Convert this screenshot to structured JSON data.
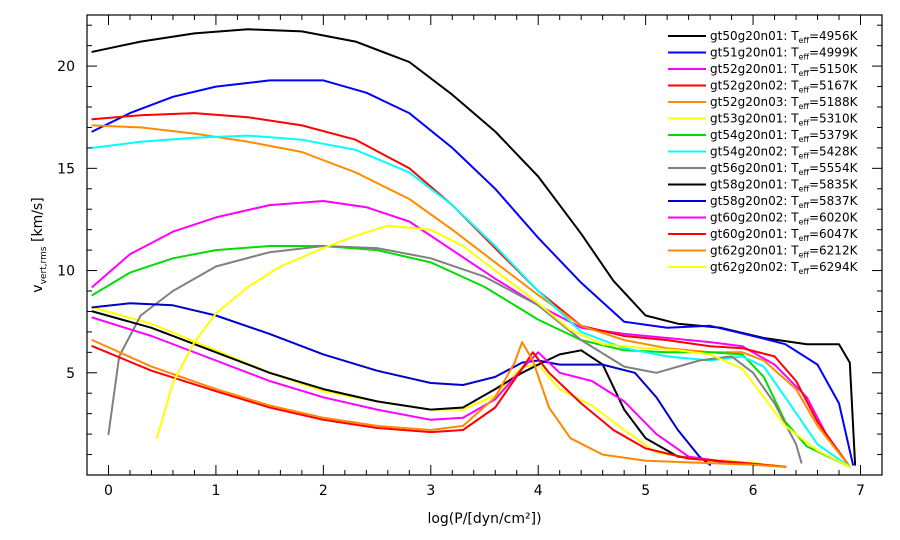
{
  "chart_data": {
    "type": "line",
    "xlabel": "log(P/[dyn/cm²])",
    "ylabel": "v_vert,rms [km/s]",
    "xlim": [
      -0.2,
      7.2
    ],
    "ylim": [
      0,
      22.5
    ],
    "x_ticks": [
      0,
      1,
      2,
      3,
      4,
      5,
      6,
      7
    ],
    "y_ticks": [
      5,
      10,
      15,
      20
    ],
    "grid": false,
    "legend_position": "top-right",
    "series": [
      {
        "name": "gt50g20n01: Teff=4956K",
        "model": "gt50g20n01",
        "teff": "4956K",
        "color": "#000000",
        "points": [
          [
            -0.15,
            20.7
          ],
          [
            0.3,
            21.2
          ],
          [
            0.8,
            21.6
          ],
          [
            1.3,
            21.8
          ],
          [
            1.8,
            21.7
          ],
          [
            2.3,
            21.2
          ],
          [
            2.8,
            20.2
          ],
          [
            3.2,
            18.6
          ],
          [
            3.6,
            16.8
          ],
          [
            4.0,
            14.6
          ],
          [
            4.4,
            11.8
          ],
          [
            4.7,
            9.5
          ],
          [
            5.0,
            7.8
          ],
          [
            5.3,
            7.4
          ],
          [
            5.7,
            7.2
          ],
          [
            6.1,
            6.7
          ],
          [
            6.5,
            6.4
          ],
          [
            6.8,
            6.4
          ],
          [
            6.9,
            5.5
          ],
          [
            6.95,
            0.5
          ]
        ]
      },
      {
        "name": "gt51g20n01: Teff=4999K",
        "model": "gt51g20n01",
        "teff": "4999K",
        "color": "#0000FF",
        "points": [
          [
            -0.15,
            16.8
          ],
          [
            0.2,
            17.7
          ],
          [
            0.6,
            18.5
          ],
          [
            1.0,
            19.0
          ],
          [
            1.5,
            19.3
          ],
          [
            2.0,
            19.3
          ],
          [
            2.4,
            18.7
          ],
          [
            2.8,
            17.7
          ],
          [
            3.2,
            16.0
          ],
          [
            3.6,
            14.0
          ],
          [
            4.0,
            11.6
          ],
          [
            4.4,
            9.4
          ],
          [
            4.8,
            7.5
          ],
          [
            5.2,
            7.2
          ],
          [
            5.6,
            7.3
          ],
          [
            6.0,
            6.8
          ],
          [
            6.3,
            6.4
          ],
          [
            6.6,
            5.4
          ],
          [
            6.8,
            3.5
          ],
          [
            6.93,
            0.5
          ]
        ]
      },
      {
        "name": "gt52g20n01: Teff=5150K",
        "model": "gt52g20n01",
        "teff": "5150K",
        "color": "#FF00FF",
        "points": [
          [
            -0.15,
            9.2
          ],
          [
            0.2,
            10.8
          ],
          [
            0.6,
            11.9
          ],
          [
            1.0,
            12.6
          ],
          [
            1.5,
            13.2
          ],
          [
            2.0,
            13.4
          ],
          [
            2.4,
            13.1
          ],
          [
            2.8,
            12.4
          ],
          [
            3.2,
            11.0
          ],
          [
            3.6,
            9.6
          ],
          [
            4.0,
            8.3
          ],
          [
            4.4,
            7.2
          ],
          [
            4.8,
            6.9
          ],
          [
            5.2,
            6.7
          ],
          [
            5.6,
            6.5
          ],
          [
            5.9,
            6.3
          ],
          [
            6.2,
            5.4
          ],
          [
            6.5,
            3.8
          ],
          [
            6.7,
            1.8
          ],
          [
            6.9,
            0.4
          ]
        ]
      },
      {
        "name": "gt52g20n02: Teff=5167K",
        "model": "gt52g20n02",
        "teff": "5167K",
        "color": "#FF0000",
        "points": [
          [
            -0.15,
            17.4
          ],
          [
            0.3,
            17.6
          ],
          [
            0.8,
            17.7
          ],
          [
            1.3,
            17.5
          ],
          [
            1.8,
            17.1
          ],
          [
            2.3,
            16.4
          ],
          [
            2.8,
            15.0
          ],
          [
            3.2,
            13.2
          ],
          [
            3.6,
            11.1
          ],
          [
            4.0,
            9.0
          ],
          [
            4.4,
            7.3
          ],
          [
            4.8,
            6.8
          ],
          [
            5.2,
            6.6
          ],
          [
            5.6,
            6.3
          ],
          [
            5.9,
            6.2
          ],
          [
            6.2,
            5.8
          ],
          [
            6.4,
            4.6
          ],
          [
            6.6,
            2.6
          ],
          [
            6.9,
            0.4
          ]
        ]
      },
      {
        "name": "gt52g20n03: Teff=5188K",
        "model": "gt52g20n03",
        "teff": "5188K",
        "color": "#FF8C00",
        "points": [
          [
            -0.15,
            17.1
          ],
          [
            0.3,
            17.0
          ],
          [
            0.8,
            16.7
          ],
          [
            1.3,
            16.3
          ],
          [
            1.8,
            15.8
          ],
          [
            2.3,
            14.8
          ],
          [
            2.8,
            13.5
          ],
          [
            3.2,
            12.0
          ],
          [
            3.6,
            10.4
          ],
          [
            4.0,
            8.8
          ],
          [
            4.4,
            7.3
          ],
          [
            4.8,
            6.6
          ],
          [
            5.2,
            6.2
          ],
          [
            5.6,
            6.0
          ],
          [
            5.9,
            6.0
          ],
          [
            6.1,
            5.6
          ],
          [
            6.4,
            4.2
          ],
          [
            6.6,
            2.4
          ],
          [
            6.9,
            0.4
          ]
        ]
      },
      {
        "name": "gt53g20n01: Teff=5310K",
        "model": "gt53g20n01",
        "teff": "5310K",
        "color": "#FFFF00",
        "points": [
          [
            -0.15,
            8.2
          ],
          [
            0.4,
            7.4
          ],
          [
            1.0,
            6.1
          ],
          [
            1.5,
            5.0
          ],
          [
            2.0,
            4.1
          ],
          [
            2.5,
            3.6
          ],
          [
            3.0,
            3.2
          ],
          [
            3.3,
            3.2
          ],
          [
            3.6,
            3.9
          ],
          [
            3.85,
            5.3
          ],
          [
            4.0,
            5.4
          ],
          [
            4.2,
            4.2
          ],
          [
            4.5,
            3.4
          ],
          [
            4.8,
            2.2
          ],
          [
            5.1,
            1.1
          ],
          [
            5.5,
            0.8
          ],
          [
            6.0,
            0.6
          ],
          [
            6.3,
            0.4
          ]
        ]
      },
      {
        "name": "gt54g20n01: Teff=5379K",
        "model": "gt54g20n01",
        "teff": "5379K",
        "color": "#00DD00",
        "points": [
          [
            -0.15,
            8.8
          ],
          [
            0.2,
            9.9
          ],
          [
            0.6,
            10.6
          ],
          [
            1.0,
            11.0
          ],
          [
            1.5,
            11.2
          ],
          [
            2.0,
            11.2
          ],
          [
            2.5,
            11.0
          ],
          [
            3.0,
            10.4
          ],
          [
            3.5,
            9.2
          ],
          [
            4.0,
            7.6
          ],
          [
            4.4,
            6.6
          ],
          [
            4.8,
            6.1
          ],
          [
            5.2,
            6.0
          ],
          [
            5.6,
            6.0
          ],
          [
            5.9,
            5.9
          ],
          [
            6.1,
            4.8
          ],
          [
            6.3,
            2.6
          ],
          [
            6.5,
            1.4
          ],
          [
            6.9,
            0.4
          ]
        ]
      },
      {
        "name": "gt54g20n02: Teff=5428K",
        "model": "gt54g20n02",
        "teff": "5428K",
        "color": "#00FFFF",
        "points": [
          [
            -0.15,
            16.0
          ],
          [
            0.3,
            16.3
          ],
          [
            0.8,
            16.5
          ],
          [
            1.3,
            16.6
          ],
          [
            1.8,
            16.4
          ],
          [
            2.3,
            15.9
          ],
          [
            2.8,
            14.8
          ],
          [
            3.2,
            13.2
          ],
          [
            3.6,
            11.2
          ],
          [
            4.0,
            9.0
          ],
          [
            4.4,
            7.0
          ],
          [
            4.8,
            6.2
          ],
          [
            5.2,
            5.8
          ],
          [
            5.6,
            5.6
          ],
          [
            5.9,
            5.8
          ],
          [
            6.1,
            5.3
          ],
          [
            6.3,
            3.8
          ],
          [
            6.6,
            1.5
          ],
          [
            6.9,
            0.4
          ]
        ]
      },
      {
        "name": "gt56g20n01: Teff=5554K",
        "model": "gt56g20n01",
        "teff": "5554K",
        "color": "#808080",
        "points": [
          [
            0.0,
            2.0
          ],
          [
            0.1,
            5.8
          ],
          [
            0.3,
            7.8
          ],
          [
            0.6,
            9.0
          ],
          [
            1.0,
            10.2
          ],
          [
            1.5,
            10.9
          ],
          [
            2.0,
            11.2
          ],
          [
            2.5,
            11.1
          ],
          [
            3.0,
            10.6
          ],
          [
            3.5,
            9.7
          ],
          [
            4.0,
            8.3
          ],
          [
            4.4,
            6.6
          ],
          [
            4.8,
            5.3
          ],
          [
            5.1,
            5.0
          ],
          [
            5.5,
            5.6
          ],
          [
            5.8,
            5.8
          ],
          [
            6.0,
            5.0
          ],
          [
            6.2,
            3.5
          ],
          [
            6.4,
            1.5
          ],
          [
            6.45,
            0.6
          ]
        ]
      },
      {
        "name": "gt58g20n01: Teff=5835K",
        "model": "gt58g20n01",
        "teff": "5835K",
        "color": "#000000",
        "points": [
          [
            -0.15,
            8.0
          ],
          [
            0.4,
            7.2
          ],
          [
            1.0,
            6.0
          ],
          [
            1.5,
            5.0
          ],
          [
            2.0,
            4.2
          ],
          [
            2.5,
            3.6
          ],
          [
            3.0,
            3.2
          ],
          [
            3.3,
            3.3
          ],
          [
            3.6,
            4.2
          ],
          [
            3.85,
            5.0
          ],
          [
            4.0,
            5.4
          ],
          [
            4.2,
            5.9
          ],
          [
            4.4,
            6.1
          ],
          [
            4.6,
            5.4
          ],
          [
            4.8,
            3.2
          ],
          [
            5.0,
            1.8
          ],
          [
            5.3,
            0.9
          ],
          [
            5.8,
            0.6
          ],
          [
            6.3,
            0.4
          ]
        ]
      },
      {
        "name": "gt58g20n02: Teff=5837K",
        "model": "gt58g20n02",
        "teff": "5837K",
        "color": "#0000CC",
        "points": [
          [
            -0.15,
            8.2
          ],
          [
            0.2,
            8.4
          ],
          [
            0.6,
            8.3
          ],
          [
            1.0,
            7.8
          ],
          [
            1.5,
            6.9
          ],
          [
            2.0,
            5.9
          ],
          [
            2.5,
            5.1
          ],
          [
            3.0,
            4.5
          ],
          [
            3.3,
            4.4
          ],
          [
            3.6,
            4.8
          ],
          [
            3.85,
            5.5
          ],
          [
            4.0,
            5.6
          ],
          [
            4.2,
            5.4
          ],
          [
            4.6,
            5.4
          ],
          [
            4.9,
            5.0
          ],
          [
            5.1,
            3.8
          ],
          [
            5.3,
            2.2
          ],
          [
            5.5,
            0.9
          ],
          [
            5.6,
            0.5
          ]
        ]
      },
      {
        "name": "gt60g20n02: Teff=6020K",
        "model": "gt60g20n02",
        "teff": "6020K",
        "color": "#FF00FF",
        "points": [
          [
            -0.15,
            7.7
          ],
          [
            0.4,
            6.8
          ],
          [
            1.0,
            5.6
          ],
          [
            1.5,
            4.6
          ],
          [
            2.0,
            3.8
          ],
          [
            2.5,
            3.2
          ],
          [
            3.0,
            2.7
          ],
          [
            3.3,
            2.8
          ],
          [
            3.6,
            3.7
          ],
          [
            3.85,
            5.2
          ],
          [
            4.0,
            6.0
          ],
          [
            4.2,
            5.0
          ],
          [
            4.5,
            4.6
          ],
          [
            4.8,
            3.6
          ],
          [
            5.1,
            2.0
          ],
          [
            5.4,
            0.9
          ],
          [
            5.8,
            0.6
          ],
          [
            6.3,
            0.4
          ]
        ]
      },
      {
        "name": "gt60g20n01: Teff=6047K",
        "model": "gt60g20n01",
        "teff": "6047K",
        "color": "#FF0000",
        "points": [
          [
            -0.15,
            6.3
          ],
          [
            0.4,
            5.1
          ],
          [
            1.0,
            4.1
          ],
          [
            1.5,
            3.3
          ],
          [
            2.0,
            2.7
          ],
          [
            2.5,
            2.3
          ],
          [
            3.0,
            2.1
          ],
          [
            3.3,
            2.2
          ],
          [
            3.6,
            3.3
          ],
          [
            3.85,
            5.2
          ],
          [
            3.95,
            6.0
          ],
          [
            4.1,
            5.0
          ],
          [
            4.4,
            3.5
          ],
          [
            4.7,
            2.2
          ],
          [
            5.0,
            1.3
          ],
          [
            5.4,
            0.8
          ],
          [
            5.9,
            0.6
          ],
          [
            6.3,
            0.4
          ]
        ]
      },
      {
        "name": "gt62g20n01: Teff=6212K",
        "model": "gt62g20n01",
        "teff": "6212K",
        "color": "#FF8800",
        "points": [
          [
            -0.15,
            6.6
          ],
          [
            0.4,
            5.3
          ],
          [
            1.0,
            4.2
          ],
          [
            1.5,
            3.4
          ],
          [
            2.0,
            2.8
          ],
          [
            2.5,
            2.4
          ],
          [
            3.0,
            2.2
          ],
          [
            3.3,
            2.4
          ],
          [
            3.6,
            3.8
          ],
          [
            3.78,
            5.5
          ],
          [
            3.85,
            6.5
          ],
          [
            3.95,
            5.6
          ],
          [
            4.1,
            3.3
          ],
          [
            4.3,
            1.8
          ],
          [
            4.6,
            1.0
          ],
          [
            5.0,
            0.7
          ],
          [
            5.5,
            0.6
          ],
          [
            6.0,
            0.5
          ],
          [
            6.3,
            0.4
          ]
        ]
      },
      {
        "name": "gt62g20n02: Teff=6294K",
        "model": "gt62g20n02",
        "teff": "6294K",
        "color": "#FFFF00",
        "points": [
          [
            0.45,
            1.8
          ],
          [
            0.6,
            4.5
          ],
          [
            0.8,
            6.5
          ],
          [
            1.0,
            7.9
          ],
          [
            1.3,
            9.2
          ],
          [
            1.6,
            10.2
          ],
          [
            2.0,
            11.1
          ],
          [
            2.3,
            11.7
          ],
          [
            2.6,
            12.2
          ],
          [
            3.0,
            12.0
          ],
          [
            3.3,
            11.2
          ],
          [
            3.6,
            10.0
          ],
          [
            4.0,
            8.4
          ],
          [
            4.3,
            7.1
          ],
          [
            4.6,
            6.4
          ],
          [
            5.0,
            6.2
          ],
          [
            5.3,
            6.1
          ],
          [
            5.6,
            5.9
          ],
          [
            5.9,
            5.2
          ],
          [
            6.1,
            3.8
          ],
          [
            6.3,
            2.4
          ],
          [
            6.6,
            1.2
          ],
          [
            6.9,
            0.4
          ]
        ]
      }
    ]
  }
}
